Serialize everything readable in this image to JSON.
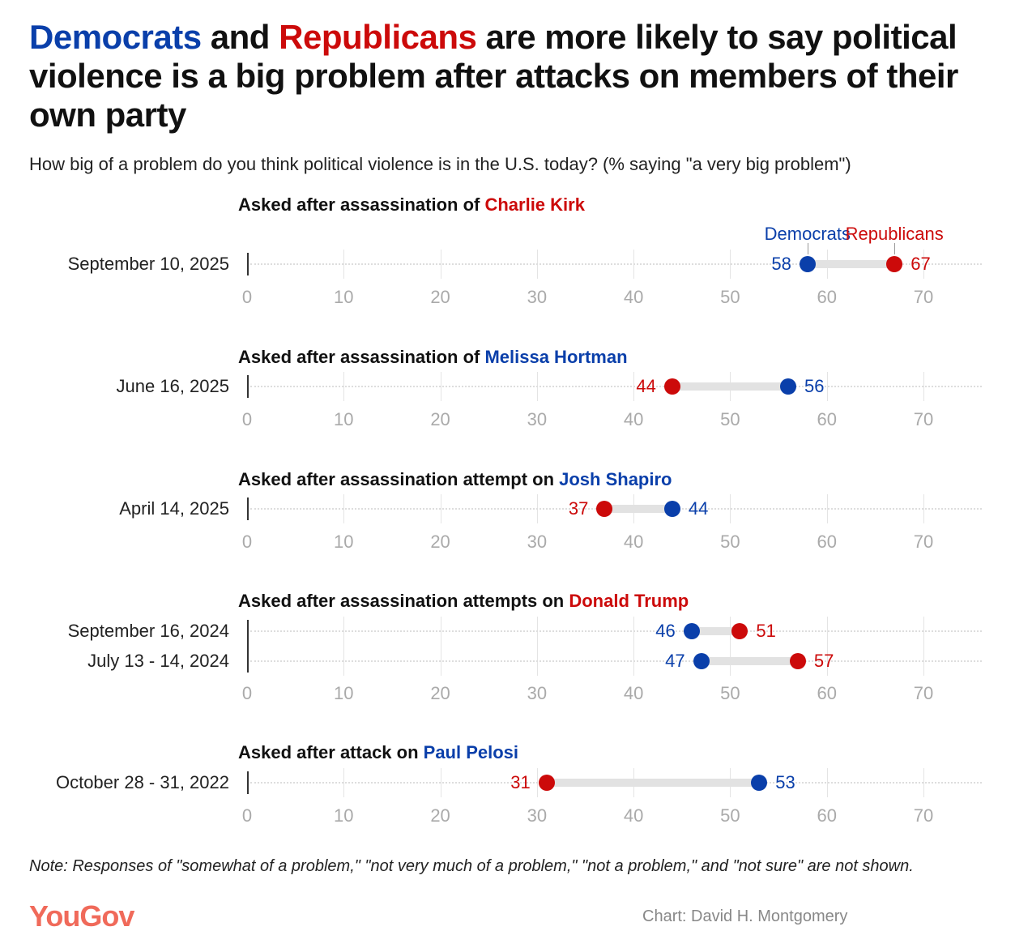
{
  "title": {
    "part1": "Democrats",
    "part2": " and ",
    "part3": "Republicans",
    "part4": " are more likely to say political violence is a big problem after attacks on members of their own party"
  },
  "subtitle": "How big of a problem do you think political violence is in the U.S. today? (% saying \"a very big problem\")",
  "colors": {
    "dem": "#0a3faa",
    "rep": "#cc0a0a"
  },
  "chart_data": {
    "type": "dot",
    "xlim": [
      0,
      70
    ],
    "ticks": [
      "0",
      "10",
      "20",
      "30",
      "40",
      "50",
      "60",
      "70"
    ],
    "legend": {
      "dem": "Democrats",
      "rep": "Republicans"
    },
    "panels": [
      {
        "prefix": "Asked after assassination of ",
        "name": "Charlie Kirk",
        "party": "rep",
        "rows": [
          {
            "label": "September 10, 2025",
            "dem": 58,
            "rep": 67
          }
        ]
      },
      {
        "prefix": "Asked after assassination of ",
        "name": "Melissa Hortman",
        "party": "dem",
        "rows": [
          {
            "label": "June 16, 2025",
            "dem": 56,
            "rep": 44
          }
        ]
      },
      {
        "prefix": "Asked after assassination attempt on ",
        "name": "Josh Shapiro",
        "party": "dem",
        "rows": [
          {
            "label": "April 14, 2025",
            "dem": 44,
            "rep": 37
          }
        ]
      },
      {
        "prefix": "Asked after assassination attempts on ",
        "name": "Donald Trump",
        "party": "rep",
        "rows": [
          {
            "label": "September 16, 2024",
            "dem": 46,
            "rep": 51
          },
          {
            "label": "July 13 - 14, 2024",
            "dem": 47,
            "rep": 57
          }
        ]
      },
      {
        "prefix": "Asked after attack on ",
        "name": "Paul Pelosi",
        "party": "dem",
        "rows": [
          {
            "label": "October 28 - 31, 2022",
            "dem": 53,
            "rep": 31
          }
        ]
      }
    ]
  },
  "note": "Note: Responses of \"somewhat of a problem,\" \"not very much of a problem,\" \"not a problem,\" and \"not sure\" are not shown.",
  "logo": "YouGov",
  "credit": "Chart: David H. Montgomery"
}
